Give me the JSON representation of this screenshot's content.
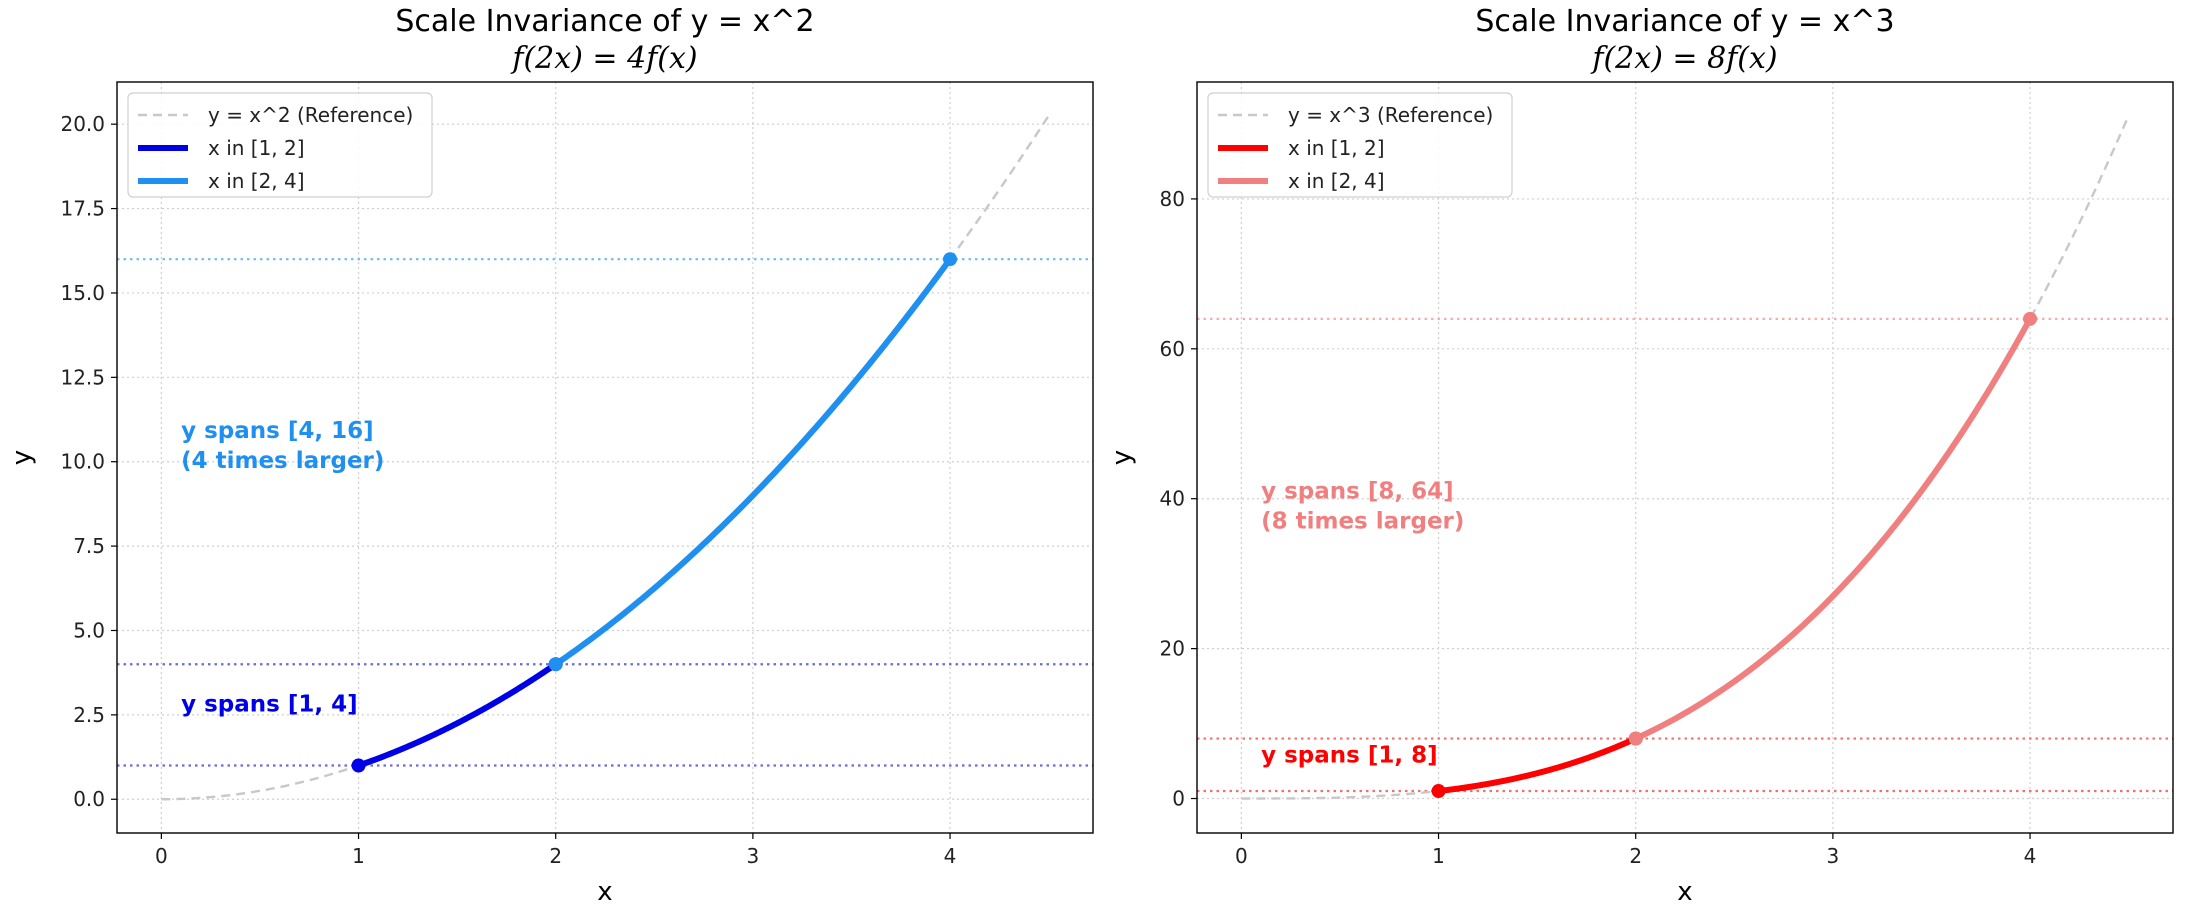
{
  "chart_data": [
    {
      "type": "line",
      "title": "Scale Invariance of y = x^2",
      "subtitle": "f(2x) = 4f(x)",
      "xlabel": "x",
      "ylabel": "y",
      "xlim": [
        -0.225,
        4.725
      ],
      "ylim": [
        -1.0,
        21.25
      ],
      "x_ticks": [
        0,
        1,
        2,
        3,
        4
      ],
      "y_ticks": [
        0.0,
        2.5,
        5.0,
        7.5,
        10.0,
        12.5,
        15.0,
        17.5,
        20.0
      ],
      "y_tick_labels": [
        "0.0",
        "2.5",
        "5.0",
        "7.5",
        "10.0",
        "12.5",
        "15.0",
        "17.5",
        "20.0"
      ],
      "grid": true,
      "legend_position": "top-left",
      "exponent": 2,
      "reference": {
        "name": "y = x^2 (Reference)",
        "x_range": [
          0,
          4.5
        ],
        "color": "#c8c8c8"
      },
      "series": [
        {
          "name": "x in [1, 2]",
          "x_range": [
            1,
            2
          ],
          "color": "#0000e6",
          "endpoints": [
            [
              1,
              1
            ],
            [
              2,
              4
            ]
          ]
        },
        {
          "name": "x in [2, 4]",
          "x_range": [
            2,
            4
          ],
          "color": "#1f8ff0",
          "endpoints": [
            [
              2,
              4
            ],
            [
              4,
              16
            ]
          ]
        }
      ],
      "hlines": [
        {
          "y": 1,
          "color": "#6b6be0"
        },
        {
          "y": 4,
          "color": "#6b6be0"
        },
        {
          "y": 16,
          "color": "#6fbcf0"
        }
      ],
      "annotations": [
        {
          "lines": [
            "y spans [1, 4]"
          ],
          "x": 0.1,
          "y": 2.6,
          "color": "#0000e6"
        },
        {
          "lines": [
            "y spans [4, 16]",
            "(4 times larger)"
          ],
          "x": 0.1,
          "y": 10.7,
          "color": "#1f8ff0"
        }
      ]
    },
    {
      "type": "line",
      "title": "Scale Invariance of y = x^3",
      "subtitle": "f(2x) = 8f(x)",
      "xlabel": "x",
      "ylabel": "y",
      "xlim": [
        -0.225,
        4.725
      ],
      "ylim": [
        -4.6,
        95.6
      ],
      "x_ticks": [
        0,
        1,
        2,
        3,
        4
      ],
      "y_ticks": [
        0,
        20,
        40,
        60,
        80
      ],
      "y_tick_labels": [
        "0",
        "20",
        "40",
        "60",
        "80"
      ],
      "grid": true,
      "legend_position": "top-left",
      "exponent": 3,
      "reference": {
        "name": "y = x^3 (Reference)",
        "x_range": [
          0,
          4.5
        ],
        "color": "#c8c8c8"
      },
      "series": [
        {
          "name": "x in [1, 2]",
          "x_range": [
            1,
            2
          ],
          "color": "#ff0000",
          "endpoints": [
            [
              1,
              1
            ],
            [
              2,
              8
            ]
          ]
        },
        {
          "name": "x in [2, 4]",
          "x_range": [
            2,
            4
          ],
          "color": "#f08080",
          "endpoints": [
            [
              2,
              8
            ],
            [
              4,
              64
            ]
          ]
        }
      ],
      "hlines": [
        {
          "y": 1,
          "color": "#f07070"
        },
        {
          "y": 8,
          "color": "#f07070"
        },
        {
          "y": 64,
          "color": "#f4b0b0"
        }
      ],
      "annotations": [
        {
          "lines": [
            "y spans [1, 8]"
          ],
          "x": 0.1,
          "y": 4.8,
          "color": "#ff0000"
        },
        {
          "lines": [
            "y spans [8, 64]",
            "(8 times larger)"
          ],
          "x": 0.1,
          "y": 40.0,
          "color": "#f08080"
        }
      ]
    }
  ]
}
